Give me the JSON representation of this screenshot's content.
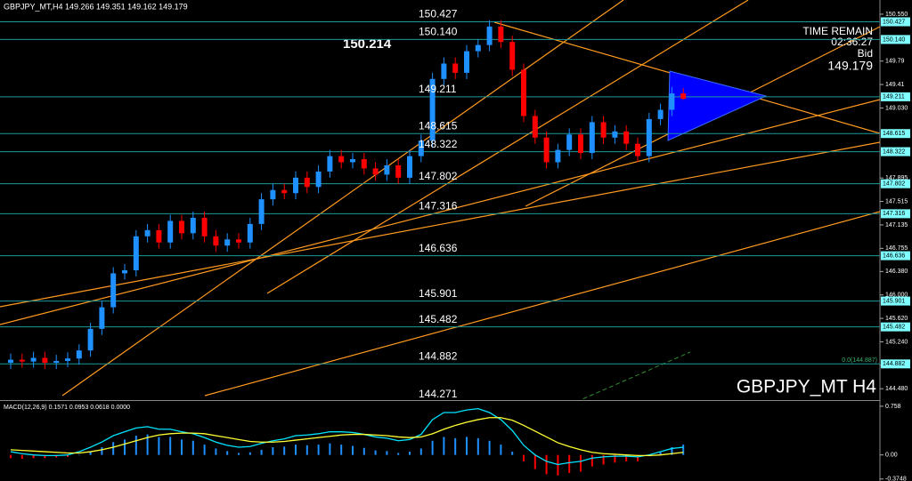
{
  "header": "GBPJPY_MT,H4  149.266 149.351 149.162 149.179",
  "overlay": {
    "high_label": "150.214",
    "time_remain": "TIME REMAIN",
    "countdown": "02:36:27",
    "bid_label": "Bid",
    "bid": "149.179",
    "symbol": "GBPJPY_MT H4",
    "fib": "0.0(144.887)"
  },
  "chart_data": [
    {
      "type": "candlestick",
      "up_color": "#1e90ff",
      "down_color": "#ff0000",
      "open": [
        144.9,
        144.95,
        144.92,
        144.98,
        144.9,
        144.93,
        144.97,
        145.1,
        145.45,
        145.8,
        146.35,
        146.4,
        146.95,
        147.05,
        146.85,
        147.2,
        147.0,
        147.25,
        146.95,
        146.8,
        146.9,
        146.85,
        147.15,
        147.55,
        147.7,
        147.65,
        147.9,
        147.75,
        148.0,
        148.25,
        148.15,
        148.2,
        148.05,
        147.95,
        148.1,
        147.9,
        148.25,
        148.5,
        149.5,
        149.75,
        149.6,
        149.95,
        150.05,
        150.35,
        150.1,
        149.65,
        148.9,
        148.55,
        148.15,
        148.35,
        148.6,
        148.3,
        148.8,
        148.55,
        148.65,
        148.45,
        148.25,
        148.85,
        149.0,
        149.266
      ],
      "high": [
        145.05,
        145.05,
        145.08,
        145.08,
        145.03,
        145.07,
        145.2,
        145.55,
        145.9,
        146.45,
        146.5,
        147.05,
        147.15,
        147.15,
        147.3,
        147.3,
        147.35,
        147.35,
        147.05,
        147.0,
        147.0,
        147.25,
        147.65,
        147.8,
        147.8,
        148.0,
        148.0,
        148.1,
        148.35,
        148.35,
        148.3,
        148.3,
        148.15,
        148.2,
        148.2,
        148.35,
        148.6,
        149.6,
        149.85,
        149.85,
        150.05,
        150.15,
        150.45,
        150.45,
        150.2,
        149.75,
        149.0,
        148.65,
        148.45,
        148.7,
        148.7,
        148.9,
        148.9,
        148.75,
        148.75,
        148.55,
        148.95,
        149.1,
        149.37,
        149.351
      ],
      "low": [
        144.8,
        144.82,
        144.82,
        144.8,
        144.8,
        144.83,
        144.87,
        145.0,
        145.35,
        145.7,
        146.25,
        146.3,
        146.85,
        146.75,
        146.75,
        146.9,
        146.9,
        146.85,
        146.7,
        146.7,
        146.75,
        146.75,
        147.05,
        147.45,
        147.55,
        147.55,
        147.65,
        147.65,
        147.9,
        148.05,
        148.05,
        147.95,
        147.85,
        147.85,
        147.8,
        147.8,
        148.15,
        148.4,
        149.4,
        149.5,
        149.5,
        149.85,
        149.95,
        150.0,
        149.55,
        148.8,
        148.45,
        148.05,
        148.05,
        148.25,
        148.2,
        148.2,
        148.45,
        148.45,
        148.35,
        148.15,
        148.15,
        148.75,
        148.9,
        149.162
      ],
      "close": [
        144.95,
        144.92,
        144.98,
        144.9,
        144.93,
        144.97,
        145.1,
        145.45,
        145.8,
        146.35,
        146.4,
        146.95,
        147.05,
        146.85,
        147.2,
        147.0,
        147.25,
        146.95,
        146.8,
        146.9,
        146.85,
        147.15,
        147.55,
        147.7,
        147.65,
        147.9,
        147.75,
        148.0,
        148.25,
        148.15,
        148.2,
        148.05,
        147.95,
        148.1,
        147.9,
        148.25,
        148.5,
        149.5,
        149.75,
        149.6,
        149.95,
        150.05,
        150.35,
        150.1,
        149.65,
        148.9,
        148.55,
        148.15,
        148.35,
        148.6,
        148.3,
        148.8,
        148.55,
        148.65,
        148.45,
        148.25,
        148.85,
        149.0,
        149.266,
        149.179
      ],
      "ylim": [
        144.31,
        150.78
      ],
      "yticks": [
        {
          "value": 150.55,
          "label": "150.550"
        },
        149.79,
        149.41,
        {
          "value": 149.03,
          "label": "149.030"
        },
        147.895,
        147.515,
        147.135,
        146.755,
        {
          "value": 146.38,
          "label": "146.380"
        },
        {
          "value": 146.0,
          "label": "146.000"
        },
        {
          "value": 145.62,
          "label": "145.620"
        },
        {
          "value": 145.24,
          "label": "145.240"
        },
        {
          "value": 144.86,
          "label": "144.860"
        },
        {
          "value": 144.48,
          "label": "144.480"
        }
      ],
      "levels": [
        150.427,
        {
          "value": 150.14,
          "label": "150.140"
        },
        149.211,
        148.615,
        148.322,
        147.802,
        147.316,
        146.636,
        145.901,
        145.482,
        144.882,
        144.271
      ],
      "level_color": "#1a9a9a"
    },
    {
      "type": "macd",
      "title": "MACD(12,26,9) 0.1571 0.0953 0.0618 0.0000",
      "up_color": "#1e90ff",
      "down_color": "#ff0000",
      "histogram": [
        -0.05,
        -0.06,
        -0.05,
        -0.05,
        -0.04,
        -0.03,
        0.0,
        0.05,
        0.12,
        0.2,
        0.24,
        0.3,
        0.32,
        0.28,
        0.28,
        0.24,
        0.22,
        0.16,
        0.1,
        0.06,
        0.03,
        0.04,
        0.08,
        0.12,
        0.13,
        0.16,
        0.15,
        0.16,
        0.18,
        0.16,
        0.14,
        0.11,
        0.07,
        0.06,
        0.03,
        0.05,
        0.1,
        0.22,
        0.28,
        0.26,
        0.28,
        0.26,
        0.22,
        0.16,
        0.05,
        -0.1,
        -0.22,
        -0.3,
        -0.32,
        -0.28,
        -0.26,
        -0.18,
        -0.15,
        -0.12,
        -0.1,
        -0.1,
        -0.02,
        0.04,
        0.12,
        0.16
      ],
      "lines": [
        {
          "color": "#00e5ff",
          "values": [
            0.05,
            0.02,
            0.0,
            -0.01,
            -0.01,
            0.0,
            0.05,
            0.12,
            0.2,
            0.3,
            0.36,
            0.42,
            0.44,
            0.4,
            0.4,
            0.36,
            0.33,
            0.27,
            0.2,
            0.15,
            0.12,
            0.13,
            0.18,
            0.22,
            0.25,
            0.3,
            0.31,
            0.33,
            0.36,
            0.36,
            0.35,
            0.32,
            0.28,
            0.26,
            0.22,
            0.24,
            0.32,
            0.55,
            0.66,
            0.66,
            0.7,
            0.72,
            0.66,
            0.55,
            0.38,
            0.15,
            0.0,
            -0.1,
            -0.15,
            -0.12,
            -0.1,
            -0.05,
            -0.03,
            -0.02,
            -0.02,
            -0.03,
            0.0,
            0.05,
            0.1,
            0.12
          ]
        },
        {
          "color": "#ffff33",
          "values": [
            0.08,
            0.07,
            0.06,
            0.05,
            0.04,
            0.03,
            0.03,
            0.05,
            0.08,
            0.12,
            0.17,
            0.22,
            0.27,
            0.31,
            0.33,
            0.34,
            0.34,
            0.33,
            0.3,
            0.27,
            0.24,
            0.21,
            0.2,
            0.2,
            0.21,
            0.23,
            0.25,
            0.27,
            0.29,
            0.31,
            0.32,
            0.32,
            0.31,
            0.3,
            0.28,
            0.27,
            0.28,
            0.33,
            0.4,
            0.46,
            0.51,
            0.55,
            0.58,
            0.58,
            0.54,
            0.46,
            0.37,
            0.28,
            0.19,
            0.13,
            0.08,
            0.04,
            0.02,
            0.01,
            0.0,
            -0.01,
            -0.01,
            0.0,
            0.02,
            0.04
          ]
        }
      ],
      "ylim": [
        -0.406,
        0.826
      ],
      "yticks": [
        0.758,
        {
          "value": 0,
          "label": "0.00"
        },
        -0.3748
      ]
    }
  ]
}
